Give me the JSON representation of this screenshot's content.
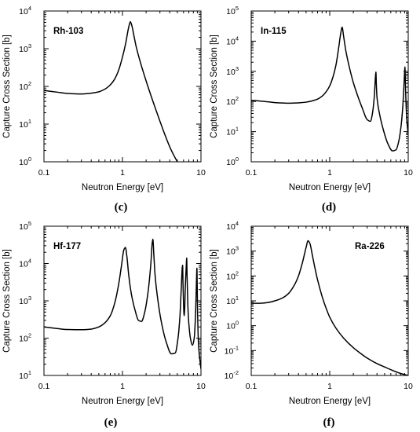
{
  "chart_data": [
    {
      "panel": "(c)",
      "type": "line",
      "annotation": "Rh-103",
      "xlabel": "Neutron Energy [eV]",
      "ylabel": "Capture Cross Section [b]",
      "xscale": "log",
      "yscale": "log",
      "xlim": [
        0.1,
        10
      ],
      "ylim": [
        1,
        10000
      ],
      "xticks": [
        "0.1",
        "1",
        "10"
      ],
      "yticks": [
        {
          "base": "10",
          "exp": "0"
        },
        {
          "base": "10",
          "exp": "1"
        },
        {
          "base": "10",
          "exp": "2"
        },
        {
          "base": "10",
          "exp": "3"
        },
        {
          "base": "10",
          "exp": "4"
        }
      ],
      "annotation_position": "top-left",
      "grid": false,
      "series": [
        {
          "x": [
            0.1,
            0.15,
            0.2,
            0.3,
            0.4,
            0.5,
            0.6,
            0.7,
            0.8,
            0.9,
            1.0,
            1.1,
            1.2,
            1.26,
            1.32,
            1.4,
            1.5,
            1.7,
            2.0,
            2.5,
            3.0,
            3.5,
            4.0,
            4.5,
            5.0
          ],
          "y": [
            78,
            70,
            65,
            63,
            66,
            72,
            85,
            110,
            160,
            280,
            600,
            1400,
            3700,
            5200,
            4000,
            2200,
            1100,
            420,
            140,
            35,
            12,
            5,
            2.5,
            1.5,
            1.0
          ]
        }
      ]
    },
    {
      "panel": "(d)",
      "type": "line",
      "annotation": "In-115",
      "xlabel": "Neutron Energy [eV]",
      "ylabel": "Capture Cross Section [b]",
      "xscale": "log",
      "yscale": "log",
      "xlim": [
        0.1,
        10
      ],
      "ylim": [
        1,
        100000
      ],
      "xticks": [
        "0.1",
        "1",
        "10"
      ],
      "yticks": [
        {
          "base": "10",
          "exp": "0"
        },
        {
          "base": "10",
          "exp": "1"
        },
        {
          "base": "10",
          "exp": "2"
        },
        {
          "base": "10",
          "exp": "3"
        },
        {
          "base": "10",
          "exp": "4"
        },
        {
          "base": "10",
          "exp": "5"
        }
      ],
      "annotation_position": "top-left",
      "grid": false,
      "series": [
        {
          "x": [
            0.1,
            0.15,
            0.2,
            0.3,
            0.4,
            0.5,
            0.6,
            0.7,
            0.8,
            0.9,
            1.0,
            1.1,
            1.2,
            1.3,
            1.38,
            1.44,
            1.5,
            1.6,
            1.8,
            2.0,
            2.3,
            2.6,
            3.0,
            3.3,
            3.5,
            3.7,
            3.83,
            3.88,
            3.92,
            4.0,
            4.3,
            4.8,
            5.5,
            6.3,
            7.0,
            7.6,
            8.1,
            8.5,
            8.8,
            9.0,
            9.07,
            9.13,
            9.25,
            9.5,
            9.75,
            10.0
          ],
          "y": [
            110,
            100,
            92,
            88,
            90,
            95,
            105,
            120,
            150,
            210,
            330,
            650,
            1600,
            6000,
            18000,
            29000,
            15000,
            5000,
            1200,
            420,
            140,
            60,
            25,
            22,
            40,
            150,
            700,
            950,
            400,
            140,
            40,
            12,
            4,
            2.3,
            2.5,
            5,
            15,
            60,
            300,
            1000,
            1400,
            1000,
            250,
            40,
            15,
            8
          ]
        }
      ]
    },
    {
      "panel": "(e)",
      "type": "line",
      "annotation": "Hf-177",
      "xlabel": "Neutron Energy [eV]",
      "ylabel": "Capture Cross Section [b]",
      "xscale": "log",
      "yscale": "log",
      "xlim": [
        0.1,
        10
      ],
      "ylim": [
        10,
        100000
      ],
      "xticks": [
        "0.1",
        "1",
        "10"
      ],
      "yticks": [
        {
          "base": "10",
          "exp": "1"
        },
        {
          "base": "10",
          "exp": "2"
        },
        {
          "base": "10",
          "exp": "3"
        },
        {
          "base": "10",
          "exp": "4"
        },
        {
          "base": "10",
          "exp": "5"
        }
      ],
      "annotation_position": "top-left",
      "grid": false,
      "series": [
        {
          "x": [
            0.1,
            0.15,
            0.2,
            0.3,
            0.4,
            0.5,
            0.6,
            0.7,
            0.8,
            0.9,
            0.98,
            1.04,
            1.09,
            1.14,
            1.2,
            1.3,
            1.45,
            1.6,
            1.75,
            1.9,
            2.1,
            2.3,
            2.39,
            2.44,
            2.5,
            2.6,
            2.8,
            3.1,
            3.6,
            4.2,
            4.7,
            5.1,
            5.4,
            5.6,
            5.78,
            5.84,
            5.9,
            6.0,
            6.1,
            6.2,
            6.3,
            6.5,
            6.58,
            6.65,
            6.8,
            7.0,
            7.4,
            7.8,
            8.2,
            8.55,
            8.75,
            8.88,
            8.95,
            9.05,
            9.2,
            9.4,
            9.7,
            10.0
          ],
          "y": [
            200,
            180,
            170,
            168,
            175,
            200,
            260,
            400,
            900,
            3000,
            10000,
            23000,
            27000,
            15000,
            5000,
            1500,
            550,
            300,
            280,
            450,
            1500,
            10000,
            35000,
            45000,
            20000,
            5000,
            1200,
            300,
            80,
            38,
            40,
            100,
            400,
            2000,
            8000,
            9000,
            3000,
            800,
            400,
            600,
            2000,
            9000,
            14000,
            5000,
            800,
            250,
            90,
            65,
            100,
            500,
            3000,
            7500,
            3000,
            500,
            120,
            50,
            25,
            15
          ]
        }
      ]
    },
    {
      "panel": "(f)",
      "type": "line",
      "annotation": "Ra-226",
      "xlabel": "Neutron Energy [eV]",
      "ylabel": "Capture Cross Section [b]",
      "xscale": "log",
      "yscale": "log",
      "xlim": [
        0.1,
        10
      ],
      "ylim": [
        0.01,
        10000
      ],
      "xticks": [
        "0.1",
        "1",
        "10"
      ],
      "yticks": [
        {
          "base": "10",
          "exp": "-2"
        },
        {
          "base": "10",
          "exp": "-1"
        },
        {
          "base": "10",
          "exp": "0"
        },
        {
          "base": "10",
          "exp": "1"
        },
        {
          "base": "10",
          "exp": "2"
        },
        {
          "base": "10",
          "exp": "3"
        },
        {
          "base": "10",
          "exp": "4"
        }
      ],
      "annotation_position": "top-right",
      "grid": false,
      "series": [
        {
          "x": [
            0.1,
            0.13,
            0.16,
            0.2,
            0.25,
            0.3,
            0.35,
            0.4,
            0.45,
            0.5,
            0.53,
            0.56,
            0.6,
            0.65,
            0.7,
            0.8,
            0.9,
            1.0,
            1.2,
            1.5,
            2.0,
            2.5,
            3.0,
            4.0,
            5.0,
            6.0,
            7.0,
            8.0,
            10.0
          ],
          "y": [
            8,
            8,
            8.5,
            10,
            13,
            20,
            40,
            100,
            350,
            1400,
            2600,
            2000,
            700,
            200,
            70,
            15,
            5,
            2.2,
            0.8,
            0.32,
            0.13,
            0.075,
            0.05,
            0.03,
            0.022,
            0.017,
            0.014,
            0.012,
            0.01
          ]
        }
      ]
    }
  ]
}
